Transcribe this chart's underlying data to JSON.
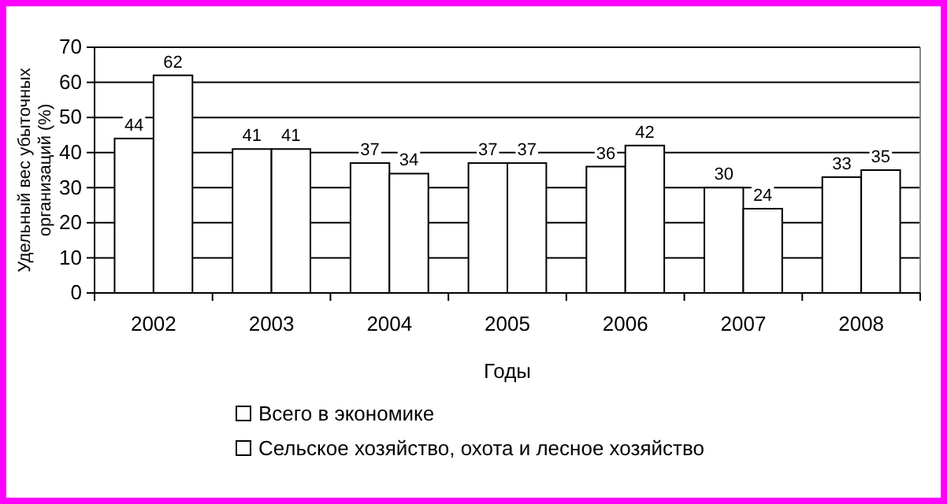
{
  "chart_data": {
    "type": "bar",
    "xlabel": "Годы",
    "ylabel": "Удельный вес убыточных\nорганизаций (%)",
    "categories": [
      "2002",
      "2003",
      "2004",
      "2005",
      "2006",
      "2007",
      "2008"
    ],
    "series": [
      {
        "name": "Всего в экономике",
        "color": "#ffffff",
        "values": [
          44,
          41,
          37,
          37,
          36,
          30,
          33
        ]
      },
      {
        "name": "Сельское хозяйство, охота и лесное хозяйство",
        "color": "#ffffff",
        "values": [
          62,
          41,
          34,
          37,
          42,
          24,
          35
        ]
      }
    ],
    "ylim": [
      0,
      70
    ],
    "yticks": [
      0,
      10,
      20,
      30,
      40,
      50,
      60,
      70
    ],
    "grid": "y",
    "legend": "bottom",
    "data_labels": true
  }
}
